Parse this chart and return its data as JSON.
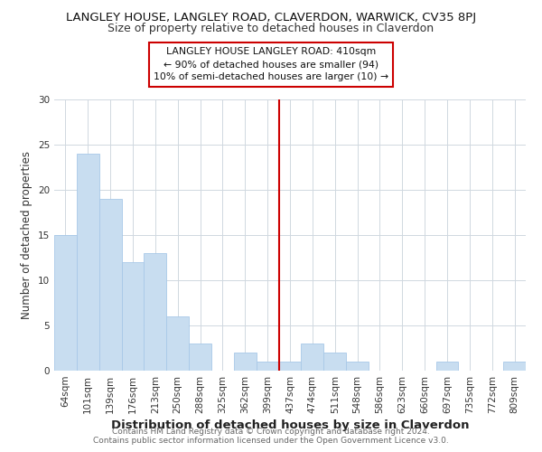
{
  "title": "LANGLEY HOUSE, LANGLEY ROAD, CLAVERDON, WARWICK, CV35 8PJ",
  "subtitle": "Size of property relative to detached houses in Claverdon",
  "xlabel": "Distribution of detached houses by size in Claverdon",
  "ylabel": "Number of detached properties",
  "bar_color": "#c8ddf0",
  "bar_edge_color": "#a8c8e8",
  "categories": [
    "64sqm",
    "101sqm",
    "139sqm",
    "176sqm",
    "213sqm",
    "250sqm",
    "288sqm",
    "325sqm",
    "362sqm",
    "399sqm",
    "437sqm",
    "474sqm",
    "511sqm",
    "548sqm",
    "586sqm",
    "623sqm",
    "660sqm",
    "697sqm",
    "735sqm",
    "772sqm",
    "809sqm"
  ],
  "values": [
    15,
    24,
    19,
    12,
    13,
    6,
    3,
    0,
    2,
    1,
    1,
    3,
    2,
    1,
    0,
    0,
    0,
    1,
    0,
    0,
    1
  ],
  "vline_x": 9.5,
  "vline_color": "#cc0000",
  "annotation_text": "LANGLEY HOUSE LANGLEY ROAD: 410sqm\n← 90% of detached houses are smaller (94)\n10% of semi-detached houses are larger (10) →",
  "ylim": [
    0,
    30
  ],
  "yticks": [
    0,
    5,
    10,
    15,
    20,
    25,
    30
  ],
  "footer_line1": "Contains HM Land Registry data © Crown copyright and database right 2024.",
  "footer_line2": "Contains public sector information licensed under the Open Government Licence v3.0.",
  "bg_color": "#ffffff",
  "plot_bg_color": "#ffffff",
  "title_fontsize": 9.5,
  "subtitle_fontsize": 9,
  "xlabel_fontsize": 9.5,
  "ylabel_fontsize": 8.5,
  "tick_fontsize": 7.5,
  "footer_fontsize": 6.5,
  "grid_color": "#d0d8e0"
}
